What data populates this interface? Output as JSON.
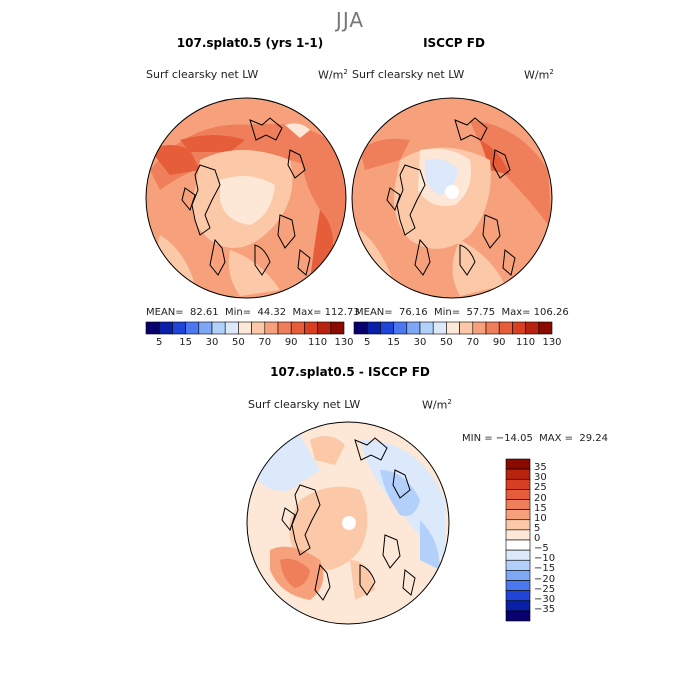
{
  "title": "JJA",
  "panels": [
    {
      "title": "107.splat0.5 (yrs 1-1)",
      "field": "Surf clearsky net LW",
      "units": "W/m",
      "units_exp": "2",
      "stats": "MEAN=  82.61  Min=  44.32  Max= 112.73",
      "pole_hole": false
    },
    {
      "title": "ISCCP FD",
      "field": "Surf clearsky net LW",
      "units": "W/m",
      "units_exp": "2",
      "stats": "MEAN=  76.16  Min=  57.75  Max= 106.26",
      "pole_hole": true
    }
  ],
  "shared_colorbar": {
    "labels": [
      "5",
      "15",
      "30",
      "50",
      "70",
      "90",
      "110",
      "130"
    ],
    "colors": [
      "#08006e",
      "#0a1fa8",
      "#1f45d8",
      "#4a78ee",
      "#7ea8f5",
      "#b3d0fa",
      "#dbe9fb",
      "#fde7d6",
      "#fbc8a8",
      "#f6a17b",
      "#ef7e5a",
      "#e65d3a",
      "#d63f22",
      "#b8230f",
      "#8a0a00"
    ]
  },
  "diff_panel": {
    "title": "107.splat0.5 - ISCCP FD",
    "field": "Surf clearsky net LW",
    "units": "W/m",
    "units_exp": "2",
    "stats": "MIN = −14.05  MAX =  29.24",
    "colorbar": {
      "labels": [
        "35",
        "30",
        "25",
        "20",
        "15",
        "10",
        "5",
        "0",
        "−5",
        "−10",
        "−15",
        "−20",
        "−25",
        "−30",
        "−35"
      ],
      "colors": [
        "#8a0a00",
        "#b8230f",
        "#d63f22",
        "#e65d3a",
        "#ef7e5a",
        "#f6a17b",
        "#fbc8a8",
        "#fde7d6",
        "#ffffff",
        "#dbe9fb",
        "#b3d0fa",
        "#7ea8f5",
        "#4a78ee",
        "#1f45d8",
        "#0a1fa8",
        "#08006e"
      ]
    }
  }
}
